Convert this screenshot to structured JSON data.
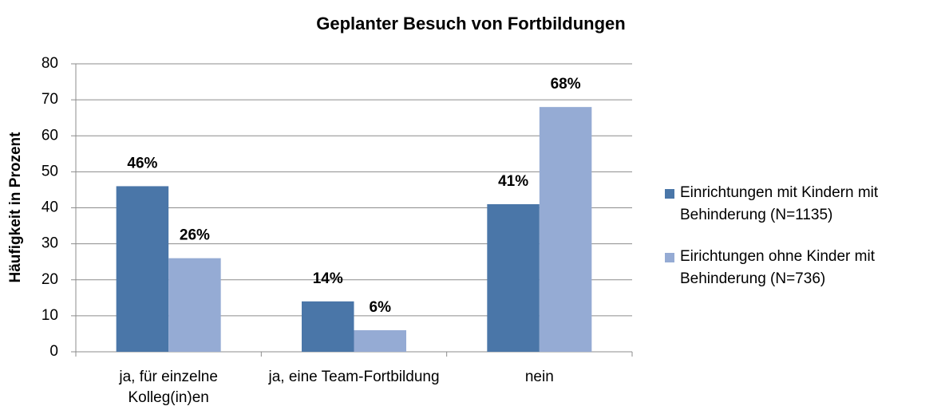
{
  "chart_data": {
    "type": "bar",
    "title": "Geplanter Besuch von Fortbildungen",
    "y_label": "Häufigkeit in Prozent",
    "categories": [
      "ja, für einzelne Kolleg(in)en",
      "ja, eine Team-Fortbildung",
      "nein"
    ],
    "series": [
      {
        "name": "Einrichtungen mit Kindern mit Behinderung (N=1135)",
        "color": "#4a76a8",
        "values": [
          46,
          14,
          41
        ],
        "value_labels": [
          "46%",
          "14%",
          "41%"
        ]
      },
      {
        "name": "Eirichtungen ohne Kinder mit Behinderung (N=736)",
        "color": "#95abd4",
        "values": [
          26,
          6,
          68
        ],
        "value_labels": [
          "26%",
          "6%",
          "68%"
        ]
      }
    ],
    "ylim": [
      0,
      80
    ],
    "yticks": [
      0,
      10,
      20,
      30,
      40,
      50,
      60,
      70,
      80
    ],
    "grid": true,
    "legend": "right"
  }
}
